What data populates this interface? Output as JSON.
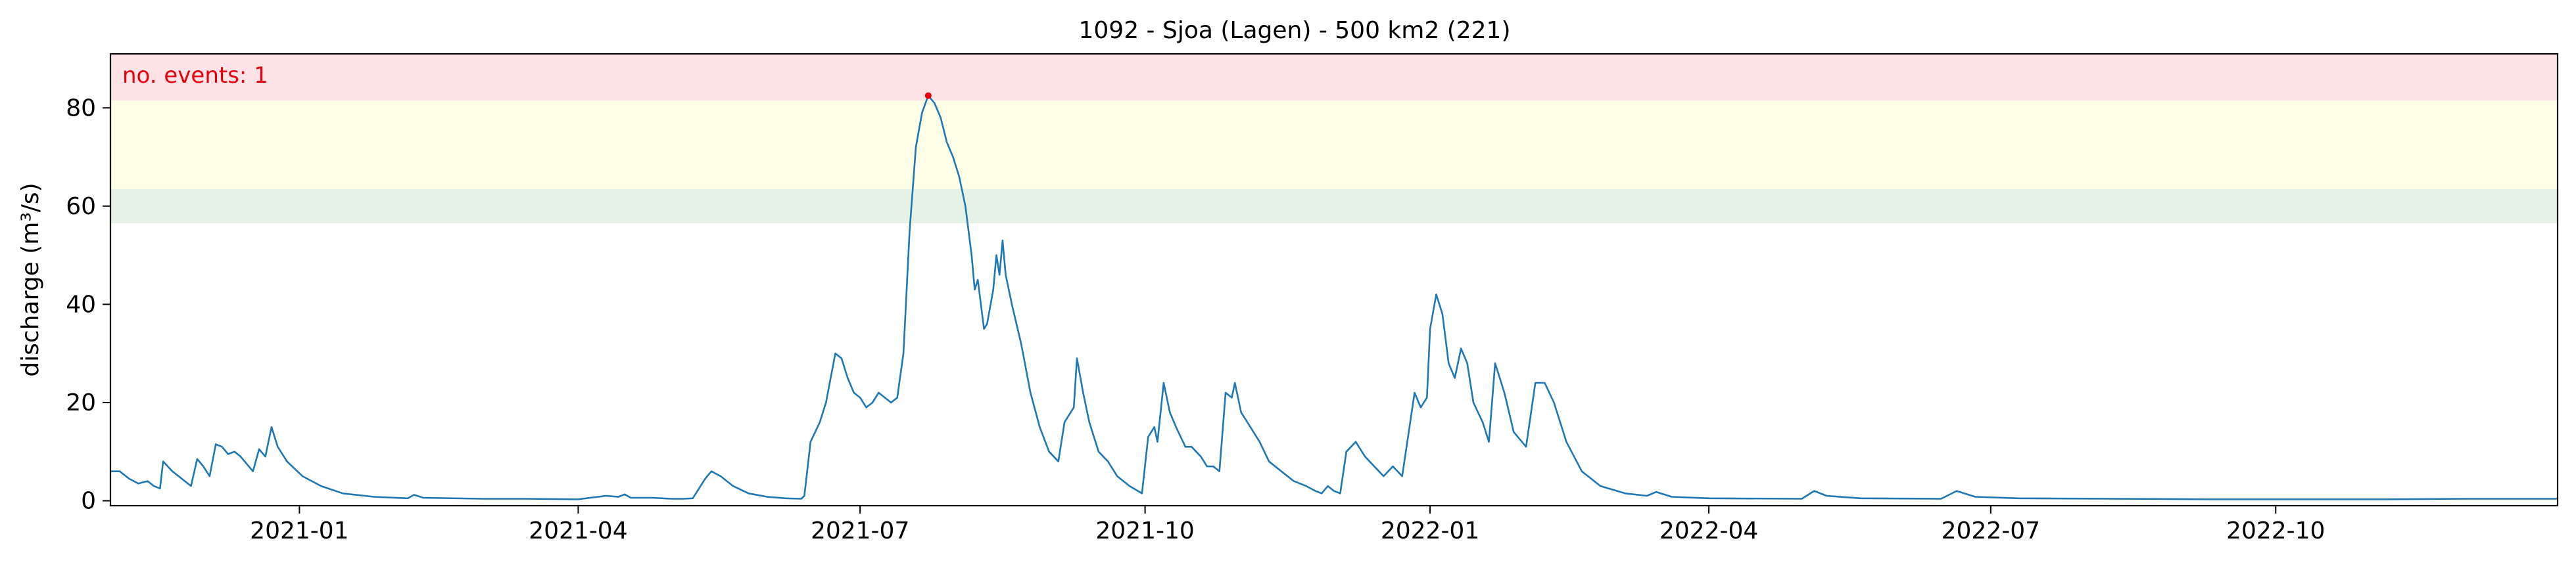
{
  "chart_data": {
    "type": "line",
    "title": "1092 - Sjoa (Lagen) - 500 km2 (221)",
    "xlabel": "",
    "ylabel": "discharge (m³/s)",
    "annotation": "no. events: 1",
    "xlim": [
      "2020-11-01",
      "2022-12-31"
    ],
    "ylim": [
      -1,
      91
    ],
    "x_ticks": [
      "2021-01",
      "2021-04",
      "2021-07",
      "2021-10",
      "2022-01",
      "2022-04",
      "2022-07",
      "2022-10"
    ],
    "y_ticks": [
      0,
      20,
      40,
      60,
      80
    ],
    "grid": false,
    "threshold_bands": [
      {
        "from": 56.5,
        "to": 63.5,
        "color": "#e5f2e5"
      },
      {
        "from": 63.5,
        "to": 81.5,
        "color": "#fefde5"
      },
      {
        "from": 81.5,
        "to": 91,
        "color": "#fee4e6"
      }
    ],
    "series": [
      {
        "color": "#1f77b4",
        "points": [
          [
            "2020-11-01",
            6
          ],
          [
            "2020-11-04",
            6
          ],
          [
            "2020-11-07",
            4.5
          ],
          [
            "2020-11-10",
            3.5
          ],
          [
            "2020-11-13",
            4
          ],
          [
            "2020-11-15",
            3
          ],
          [
            "2020-11-17",
            2.5
          ],
          [
            "2020-11-18",
            8
          ],
          [
            "2020-11-21",
            6
          ],
          [
            "2020-11-24",
            4.5
          ],
          [
            "2020-11-27",
            3
          ],
          [
            "2020-11-29",
            8.5
          ],
          [
            "2020-12-01",
            7
          ],
          [
            "2020-12-03",
            5
          ],
          [
            "2020-12-05",
            11.5
          ],
          [
            "2020-12-07",
            11
          ],
          [
            "2020-12-09",
            9.5
          ],
          [
            "2020-12-11",
            10
          ],
          [
            "2020-12-13",
            9
          ],
          [
            "2020-12-15",
            7.5
          ],
          [
            "2020-12-17",
            6
          ],
          [
            "2020-12-19",
            10.5
          ],
          [
            "2020-12-21",
            9
          ],
          [
            "2020-12-23",
            15
          ],
          [
            "2020-12-25",
            11
          ],
          [
            "2020-12-28",
            8
          ],
          [
            "2021-01-02",
            5
          ],
          [
            "2021-01-08",
            3
          ],
          [
            "2021-01-15",
            1.5
          ],
          [
            "2021-01-25",
            0.8
          ],
          [
            "2021-02-05",
            0.5
          ],
          [
            "2021-02-07",
            1.2
          ],
          [
            "2021-02-10",
            0.6
          ],
          [
            "2021-03-01",
            0.4
          ],
          [
            "2021-03-15",
            0.4
          ],
          [
            "2021-04-01",
            0.3
          ],
          [
            "2021-04-10",
            1
          ],
          [
            "2021-04-14",
            0.8
          ],
          [
            "2021-04-16",
            1.3
          ],
          [
            "2021-04-18",
            0.6
          ],
          [
            "2021-04-25",
            0.6
          ],
          [
            "2021-05-01",
            0.4
          ],
          [
            "2021-05-05",
            0.4
          ],
          [
            "2021-05-08",
            0.5
          ],
          [
            "2021-05-12",
            4.5
          ],
          [
            "2021-05-14",
            6
          ],
          [
            "2021-05-17",
            5
          ],
          [
            "2021-05-21",
            3
          ],
          [
            "2021-05-26",
            1.5
          ],
          [
            "2021-06-01",
            0.8
          ],
          [
            "2021-06-07",
            0.5
          ],
          [
            "2021-06-12",
            0.4
          ],
          [
            "2021-06-13",
            1
          ],
          [
            "2021-06-15",
            12
          ],
          [
            "2021-06-18",
            16
          ],
          [
            "2021-06-20",
            20
          ],
          [
            "2021-06-23",
            30
          ],
          [
            "2021-06-25",
            29
          ],
          [
            "2021-06-27",
            25
          ],
          [
            "2021-06-29",
            22
          ],
          [
            "2021-07-01",
            21
          ],
          [
            "2021-07-03",
            19
          ],
          [
            "2021-07-05",
            20
          ],
          [
            "2021-07-07",
            22
          ],
          [
            "2021-07-09",
            21
          ],
          [
            "2021-07-11",
            20
          ],
          [
            "2021-07-13",
            21
          ],
          [
            "2021-07-15",
            30
          ],
          [
            "2021-07-17",
            55
          ],
          [
            "2021-07-19",
            72
          ],
          [
            "2021-07-21",
            79
          ],
          [
            "2021-07-23",
            82.5
          ],
          [
            "2021-07-25",
            81
          ],
          [
            "2021-07-27",
            78
          ],
          [
            "2021-07-29",
            73
          ],
          [
            "2021-07-31",
            70
          ],
          [
            "2021-08-02",
            66
          ],
          [
            "2021-08-04",
            60
          ],
          [
            "2021-08-06",
            50
          ],
          [
            "2021-08-07",
            43
          ],
          [
            "2021-08-08",
            45
          ],
          [
            "2021-08-09",
            40
          ],
          [
            "2021-08-10",
            35
          ],
          [
            "2021-08-11",
            36
          ],
          [
            "2021-08-13",
            43
          ],
          [
            "2021-08-14",
            50
          ],
          [
            "2021-08-15",
            46
          ],
          [
            "2021-08-16",
            53
          ],
          [
            "2021-08-17",
            46
          ],
          [
            "2021-08-19",
            40
          ],
          [
            "2021-08-22",
            32
          ],
          [
            "2021-08-25",
            22
          ],
          [
            "2021-08-28",
            15
          ],
          [
            "2021-08-31",
            10
          ],
          [
            "2021-09-03",
            8
          ],
          [
            "2021-09-05",
            16
          ],
          [
            "2021-09-08",
            19
          ],
          [
            "2021-09-09",
            29
          ],
          [
            "2021-09-11",
            22
          ],
          [
            "2021-09-13",
            16
          ],
          [
            "2021-09-16",
            10
          ],
          [
            "2021-09-19",
            8
          ],
          [
            "2021-09-22",
            5
          ],
          [
            "2021-09-26",
            3
          ],
          [
            "2021-09-30",
            1.5
          ],
          [
            "2021-10-02",
            13
          ],
          [
            "2021-10-04",
            15
          ],
          [
            "2021-10-05",
            12
          ],
          [
            "2021-10-07",
            24
          ],
          [
            "2021-10-09",
            18
          ],
          [
            "2021-10-11",
            15
          ],
          [
            "2021-10-14",
            11
          ],
          [
            "2021-10-16",
            11
          ],
          [
            "2021-10-19",
            9
          ],
          [
            "2021-10-21",
            7
          ],
          [
            "2021-10-23",
            7
          ],
          [
            "2021-10-25",
            6
          ],
          [
            "2021-10-27",
            22
          ],
          [
            "2021-10-29",
            21
          ],
          [
            "2021-10-30",
            24
          ],
          [
            "2021-11-01",
            18
          ],
          [
            "2021-11-04",
            15
          ],
          [
            "2021-11-07",
            12
          ],
          [
            "2021-11-10",
            8
          ],
          [
            "2021-11-14",
            6
          ],
          [
            "2021-11-18",
            4
          ],
          [
            "2021-11-22",
            3
          ],
          [
            "2021-11-25",
            2
          ],
          [
            "2021-11-27",
            1.5
          ],
          [
            "2021-11-29",
            3
          ],
          [
            "2021-12-01",
            2
          ],
          [
            "2021-12-03",
            1.5
          ],
          [
            "2021-12-05",
            10
          ],
          [
            "2021-12-08",
            12
          ],
          [
            "2021-12-11",
            9
          ],
          [
            "2021-12-14",
            7
          ],
          [
            "2021-12-17",
            5
          ],
          [
            "2021-12-20",
            7
          ],
          [
            "2021-12-23",
            5
          ],
          [
            "2021-12-27",
            22
          ],
          [
            "2021-12-29",
            19
          ],
          [
            "2021-12-31",
            21
          ],
          [
            "2022-01-01",
            35
          ],
          [
            "2022-01-03",
            42
          ],
          [
            "2022-01-05",
            38
          ],
          [
            "2022-01-07",
            28
          ],
          [
            "2022-01-09",
            25
          ],
          [
            "2022-01-11",
            31
          ],
          [
            "2022-01-13",
            28
          ],
          [
            "2022-01-15",
            20
          ],
          [
            "2022-01-18",
            16
          ],
          [
            "2022-01-20",
            12
          ],
          [
            "2022-01-22",
            28
          ],
          [
            "2022-01-25",
            22
          ],
          [
            "2022-01-28",
            14
          ],
          [
            "2022-02-01",
            11
          ],
          [
            "2022-02-04",
            24
          ],
          [
            "2022-02-07",
            24
          ],
          [
            "2022-02-10",
            20
          ],
          [
            "2022-02-14",
            12
          ],
          [
            "2022-02-19",
            6
          ],
          [
            "2022-02-25",
            3
          ],
          [
            "2022-03-05",
            1.5
          ],
          [
            "2022-03-12",
            1
          ],
          [
            "2022-03-15",
            1.8
          ],
          [
            "2022-03-20",
            0.8
          ],
          [
            "2022-04-01",
            0.5
          ],
          [
            "2022-05-01",
            0.4
          ],
          [
            "2022-05-05",
            2
          ],
          [
            "2022-05-09",
            1
          ],
          [
            "2022-05-20",
            0.5
          ],
          [
            "2022-06-15",
            0.4
          ],
          [
            "2022-06-20",
            2
          ],
          [
            "2022-06-26",
            0.8
          ],
          [
            "2022-07-10",
            0.5
          ],
          [
            "2022-08-10",
            0.4
          ],
          [
            "2022-09-10",
            0.3
          ],
          [
            "2022-10-10",
            0.3
          ],
          [
            "2022-11-05",
            0.3
          ],
          [
            "2022-12-01",
            0.4
          ],
          [
            "2022-12-31",
            0.4
          ]
        ]
      }
    ],
    "highlight_point": [
      "2021-07-23",
      82.5
    ]
  }
}
